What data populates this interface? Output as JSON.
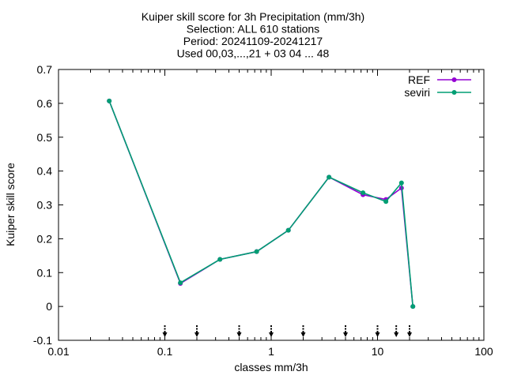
{
  "chart_data": {
    "type": "line",
    "title_lines": [
      "Kuiper skill score  for 3h Precipitation (mm/3h)",
      "Selection: ALL    610 stations",
      "Period: 20241109-20241217",
      "Used 00,03,...,21 + 03 04 ... 48"
    ],
    "xlabel": "classes mm/3h",
    "ylabel": "Kuiper skill score",
    "x_scale": "log",
    "xlim": [
      0.01,
      100
    ],
    "ylim": [
      -0.1,
      0.7
    ],
    "x_ticks": [
      0.01,
      0.1,
      1,
      10,
      100
    ],
    "x_tick_labels": [
      "0.01",
      "0.1",
      "1",
      "10",
      "100"
    ],
    "y_ticks": [
      -0.1,
      0,
      0.1,
      0.2,
      0.3,
      0.4,
      0.5,
      0.6,
      0.7
    ],
    "y_tick_labels": [
      "-0.1",
      "0",
      "0.1",
      "0.2",
      "0.3",
      "0.4",
      "0.5",
      "0.6",
      "0.7"
    ],
    "grid": false,
    "legend_position": "top-right",
    "threshold_markers": [
      0.1,
      0.2,
      0.5,
      1,
      2,
      5,
      10,
      15,
      20
    ],
    "series": [
      {
        "name": "REF",
        "color": "#9400d3",
        "x": [
          0.03,
          0.14,
          0.33,
          0.73,
          1.45,
          3.5,
          7.3,
          12.0,
          16.8,
          21.5
        ],
        "y": [
          0.607,
          0.068,
          0.139,
          0.162,
          0.225,
          0.382,
          0.33,
          0.316,
          0.35,
          0.0
        ]
      },
      {
        "name": "seviri",
        "color": "#009e73",
        "x": [
          0.03,
          0.14,
          0.33,
          0.73,
          1.45,
          3.5,
          7.3,
          12.0,
          16.8,
          21.5
        ],
        "y": [
          0.607,
          0.07,
          0.139,
          0.162,
          0.225,
          0.382,
          0.336,
          0.31,
          0.365,
          0.0
        ]
      }
    ]
  }
}
